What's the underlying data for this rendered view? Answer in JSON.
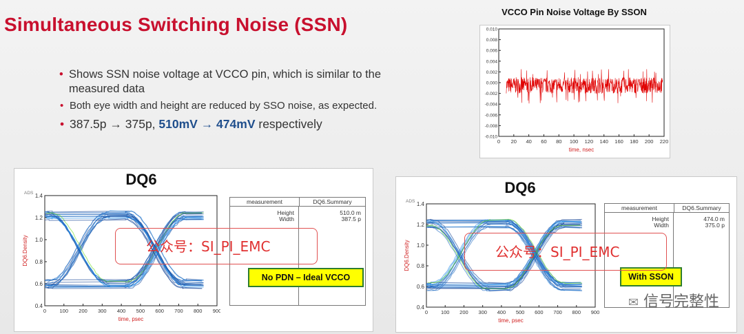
{
  "slide": {
    "title": "Simultaneous Switching Noise (SSN)",
    "bullet1": "Shows SSN noise voltage at VCCO pin, which is similar to the measured data",
    "bullet2": "Both eye width and height are reduced by SSO noise, as expected.",
    "bullet3": {
      "part1": "387.5p → 375p, ",
      "highlight": "510mV → 474mV",
      "part2": " respectively"
    },
    "brand": "信号完整性",
    "colors": {
      "title": "#c8102e",
      "highlight": "#1f4e8c",
      "trace": "#e00000",
      "eye": "#1a7fd0"
    }
  },
  "chart_data": [
    {
      "type": "line",
      "title": "VCCO Pin Noise Voltage By SSON",
      "xlabel": "time, nsec",
      "ylabel": "",
      "xlim": [
        0,
        220
      ],
      "ylim": [
        -0.01,
        0.01
      ],
      "x_ticks": [
        "0",
        "20",
        "40",
        "60",
        "80",
        "100",
        "120",
        "140",
        "160",
        "180",
        "200",
        "220"
      ],
      "y_ticks": [
        "0.010",
        "0.008",
        "0.006",
        "0.004",
        "0.002",
        "0.000",
        "-0.002",
        "-0.004",
        "-0.006",
        "-0.008",
        "-0.010"
      ],
      "series": [
        {
          "x_start": 10,
          "x_end": 218,
          "center": -0.0005,
          "amplitude": 0.0015,
          "peak_max": 0.0025,
          "peak_min": -0.0045
        }
      ],
      "grid": false
    },
    {
      "type": "scatter",
      "title": "DQ6",
      "xlabel": "time, psec",
      "ylabel": "DQ6.Density",
      "xlim": [
        0,
        900
      ],
      "ylim": [
        0.4,
        1.4
      ],
      "x_ticks": [
        "0",
        "100",
        "200",
        "300",
        "400",
        "500",
        "600",
        "700",
        "800",
        "900"
      ],
      "y_ticks": [
        "1.4",
        "1.2",
        "1.0",
        "0.8",
        "0.6",
        "0.4"
      ],
      "corner_label": "ADS",
      "eye": {
        "high": 1.22,
        "low": 0.6,
        "crossings": [
          180,
          580
        ],
        "x_end": 830
      },
      "measurement": {
        "col1": "measurement",
        "col2": "DQ6.Summary",
        "labels": [
          "Height",
          "Width"
        ],
        "values": [
          "510.0 m",
          "387.5 p"
        ]
      },
      "tag": "No PDN – Ideal VCCO",
      "watermark": "公众号：SI_PI_EMC"
    },
    {
      "type": "scatter",
      "title": "DQ6",
      "xlabel": "time, psec",
      "ylabel": "DQ6.Density",
      "xlim": [
        0,
        900
      ],
      "ylim": [
        0.4,
        1.4
      ],
      "x_ticks": [
        "0",
        "100",
        "200",
        "300",
        "400",
        "500",
        "600",
        "700",
        "800",
        "900"
      ],
      "y_ticks": [
        "1.4",
        "1.2",
        "1.0",
        "0.8",
        "0.6",
        "0.4"
      ],
      "corner_label": "ADS",
      "eye": {
        "high": 1.21,
        "low": 0.6,
        "crossings": [
          180,
          580
        ],
        "x_end": 830
      },
      "measurement": {
        "col1": "measurement",
        "col2": "DQ6.Summary",
        "labels": [
          "Height",
          "Width"
        ],
        "values": [
          "474.0 m",
          "375.0 p"
        ]
      },
      "tag": "With SSON",
      "watermark": "公众号：SI_PI_EMC"
    }
  ]
}
